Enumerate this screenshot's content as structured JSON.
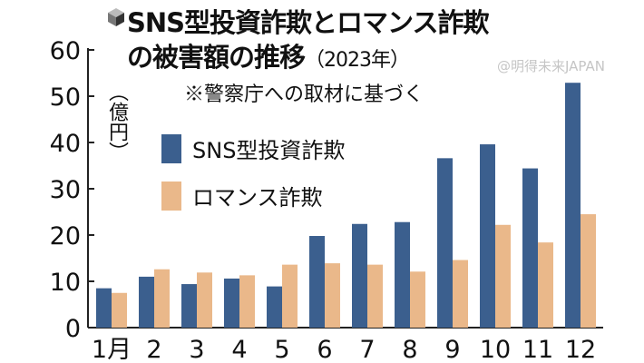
{
  "header": {
    "title_line1": "SNS型投資詐欺とロマンス詐欺",
    "title_line2": "の被害額の推移",
    "year": "（2023年）",
    "note": "※警察庁への取材に基づく",
    "icon": "cube-icon"
  },
  "watermark": "@明得未来JAPAN",
  "chart_data": {
    "type": "bar",
    "title": "SNS型投資詐欺とロマンス詐欺の被害額の推移（2023年）",
    "ylabel": "（億円）",
    "xlabel": "",
    "ylim": [
      0,
      60
    ],
    "yticks": [
      0,
      10,
      20,
      30,
      40,
      50,
      60
    ],
    "grid": false,
    "legend_placement": "top-left",
    "categories": [
      "1月",
      "2",
      "3",
      "4",
      "5",
      "6",
      "7",
      "8",
      "9",
      "10",
      "11",
      "12"
    ],
    "series": [
      {
        "name": "SNS型投資詐欺",
        "color": "#3b5f8e",
        "values": [
          8.5,
          11.0,
          9.4,
          10.6,
          8.9,
          19.8,
          22.4,
          22.8,
          36.6,
          39.6,
          34.4,
          52.9
        ]
      },
      {
        "name": "ロマンス詐欺",
        "color": "#eab88a",
        "values": [
          7.5,
          12.6,
          11.9,
          11.3,
          13.6,
          13.9,
          13.6,
          12.1,
          14.6,
          22.2,
          18.4,
          24.5
        ]
      }
    ]
  }
}
